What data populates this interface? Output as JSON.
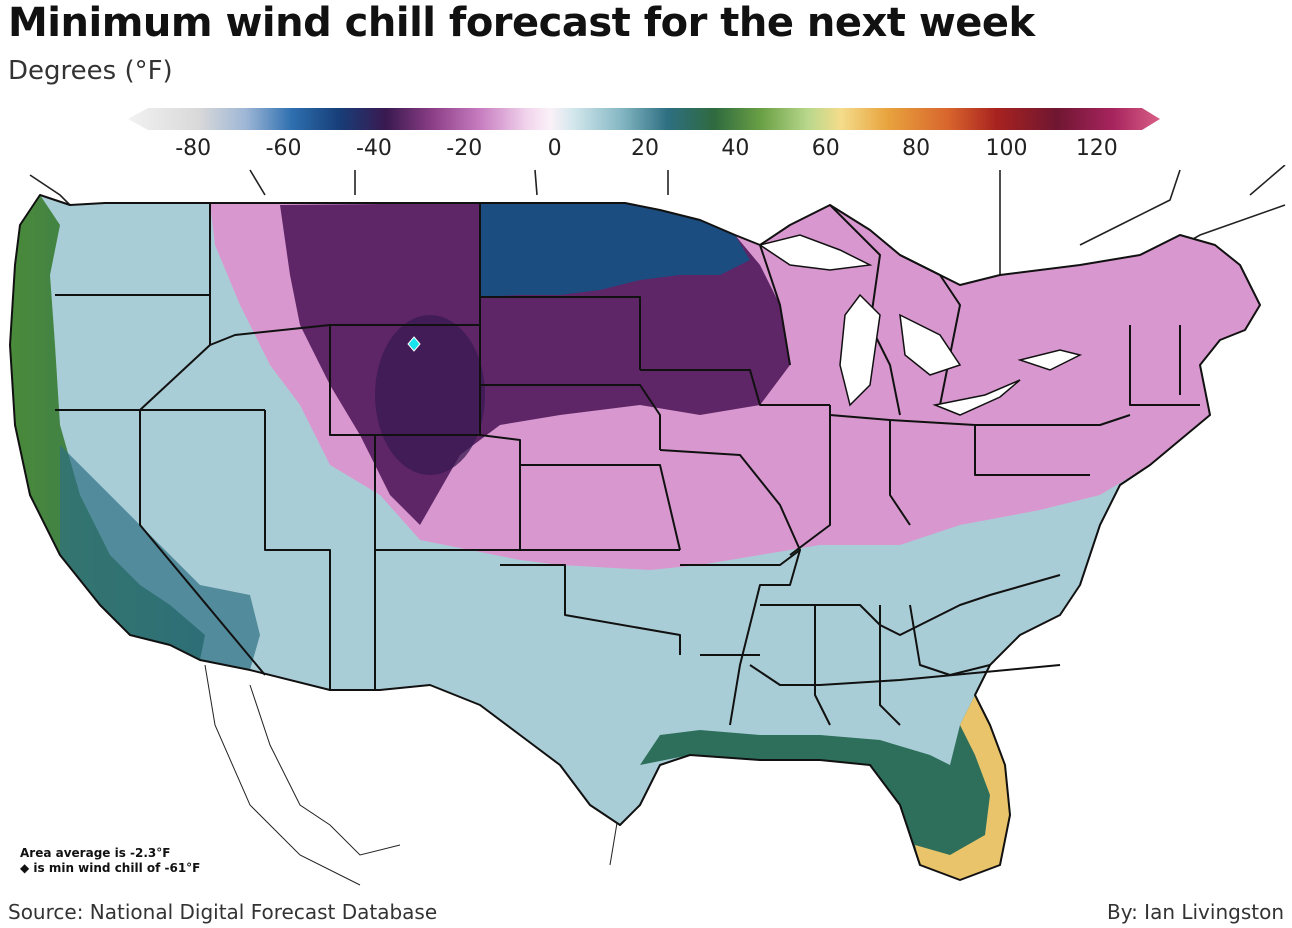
{
  "header": {
    "title": "Minimum wind chill forecast for the next week",
    "subtitle": "Degrees (°F)"
  },
  "colorbar": {
    "min": -90,
    "max": 130,
    "ticks": [
      "-80",
      "-60",
      "-40",
      "-20",
      "0",
      "20",
      "40",
      "60",
      "80",
      "100",
      "120"
    ],
    "stops": [
      {
        "value": -90,
        "color": "#f2f2f2"
      },
      {
        "value": -75,
        "color": "#d9d9d9"
      },
      {
        "value": -65,
        "color": "#9fb7d6"
      },
      {
        "value": -55,
        "color": "#2e6fb0"
      },
      {
        "value": -45,
        "color": "#173e78"
      },
      {
        "value": -35,
        "color": "#3a1950"
      },
      {
        "value": -25,
        "color": "#8c3f86"
      },
      {
        "value": -15,
        "color": "#c77cc0"
      },
      {
        "value": -5,
        "color": "#f1d4ec"
      },
      {
        "value": 0,
        "color": "#fbf1f8"
      },
      {
        "value": 5,
        "color": "#d2e7ec"
      },
      {
        "value": 15,
        "color": "#86b8c4"
      },
      {
        "value": 25,
        "color": "#2e6f82"
      },
      {
        "value": 35,
        "color": "#2f6a3f"
      },
      {
        "value": 45,
        "color": "#6aa045"
      },
      {
        "value": 55,
        "color": "#b9d88c"
      },
      {
        "value": 62,
        "color": "#f4dc8b"
      },
      {
        "value": 72,
        "color": "#e8a33d"
      },
      {
        "value": 85,
        "color": "#d8642d"
      },
      {
        "value": 95,
        "color": "#a8231f"
      },
      {
        "value": 108,
        "color": "#6f1631"
      },
      {
        "value": 120,
        "color": "#a7245e"
      },
      {
        "value": 130,
        "color": "#d85f86"
      }
    ]
  },
  "map": {
    "min_marker_color": "#17e4ee"
  },
  "notes": {
    "area_average": "Area average is -2.3°F",
    "min_note": "◆ is min wind chill of -61°F"
  },
  "footer": {
    "source": "Source: National Digital Forecast Database",
    "byline": "By: Ian Livingston"
  }
}
